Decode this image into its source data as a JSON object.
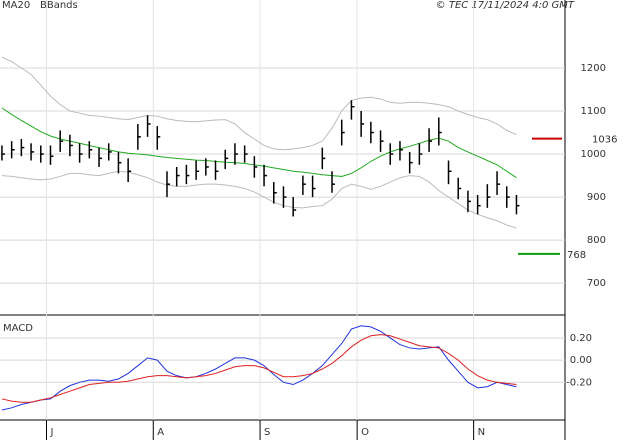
{
  "chart_data": [
    {
      "type": "ohlc",
      "source": "© TEC 17/11/2024 4:0 GMT",
      "high": [
        1020,
        1030,
        1035,
        1025,
        1020,
        1020,
        1055,
        1045,
        1025,
        1030,
        1015,
        1025,
        1005,
        990,
        1070,
        1090,
        1065,
        960,
        970,
        975,
        985,
        990,
        985,
        1010,
        1025,
        1020,
        995,
        975,
        935,
        925,
        900,
        950,
        950,
        1015,
        960,
        1080,
        1125,
        1100,
        1075,
        1055,
        1025,
        1030,
        1005,
        1025,
        1060,
        1085,
        985,
        945,
        915,
        905,
        930,
        960,
        925,
        905
      ],
      "low": [
        985,
        990,
        995,
        985,
        980,
        975,
        1005,
        995,
        980,
        990,
        970,
        985,
        955,
        935,
        1010,
        1040,
        1010,
        900,
        925,
        930,
        940,
        950,
        940,
        965,
        975,
        980,
        945,
        925,
        885,
        875,
        855,
        905,
        900,
        965,
        910,
        1020,
        1080,
        1040,
        1025,
        1005,
        975,
        985,
        955,
        975,
        1005,
        1020,
        930,
        895,
        865,
        860,
        875,
        905,
        875,
        860
      ],
      "close": [
        1000,
        1010,
        1015,
        1005,
        1000,
        995,
        1030,
        1020,
        1000,
        1010,
        990,
        1005,
        980,
        960,
        1040,
        1070,
        1040,
        930,
        950,
        950,
        960,
        970,
        960,
        990,
        1000,
        1000,
        970,
        950,
        910,
        900,
        870,
        930,
        920,
        990,
        930,
        1050,
        1110,
        1070,
        1050,
        1030,
        1000,
        1010,
        980,
        1000,
        1030,
        1050,
        960,
        920,
        890,
        880,
        900,
        930,
        900,
        880
      ],
      "bar_color": "#000000",
      "series": [
        {
          "name": "MA20",
          "color": "#22aa22",
          "values": [
            1107,
            1092,
            1078,
            1065,
            1052,
            1042,
            1035,
            1030,
            1025,
            1020,
            1015,
            1010,
            1005,
            1002,
            1000,
            998,
            995,
            992,
            990,
            988,
            986,
            985,
            983,
            981,
            980,
            978,
            975,
            972,
            968,
            964,
            960,
            958,
            955,
            952,
            950,
            948,
            955,
            968,
            983,
            995,
            1005,
            1012,
            1018,
            1025,
            1032,
            1037,
            1030,
            1015,
            1005,
            995,
            985,
            975,
            960,
            945
          ]
        },
        {
          "name": "BBands",
          "color": "#bbbbbb",
          "upper": [
            1225,
            1215,
            1200,
            1185,
            1160,
            1135,
            1115,
            1100,
            1095,
            1090,
            1088,
            1085,
            1082,
            1080,
            1085,
            1090,
            1088,
            1082,
            1078,
            1076,
            1075,
            1077,
            1079,
            1080,
            1070,
            1050,
            1035,
            1020,
            1012,
            1010,
            1012,
            1015,
            1020,
            1030,
            1060,
            1100,
            1125,
            1130,
            1132,
            1128,
            1120,
            1118,
            1120,
            1120,
            1118,
            1115,
            1110,
            1100,
            1092,
            1085,
            1080,
            1070,
            1055,
            1045
          ],
          "lower": [
            950,
            948,
            945,
            942,
            940,
            942,
            948,
            955,
            955,
            952,
            950,
            955,
            960,
            958,
            952,
            945,
            935,
            928,
            925,
            925,
            928,
            930,
            930,
            928,
            925,
            920,
            912,
            900,
            888,
            880,
            876,
            875,
            878,
            880,
            895,
            920,
            930,
            925,
            918,
            925,
            935,
            945,
            950,
            948,
            935,
            915,
            900,
            885,
            870,
            860,
            852,
            845,
            835,
            828
          ]
        }
      ],
      "annotations": [
        {
          "value": 1036,
          "color": "#cc0000"
        },
        {
          "value": 768,
          "color": "#119911"
        }
      ],
      "ylim": [
        626,
        1358
      ],
      "yticks": [
        700,
        800,
        900,
        1000,
        1100,
        1200
      ],
      "grid": true
    },
    {
      "type": "line",
      "title": "MACD",
      "categories": [
        null,
        null,
        null,
        null,
        null,
        "J",
        null,
        null,
        null,
        null,
        null,
        null,
        null,
        null,
        null,
        null,
        "A",
        null,
        null,
        null,
        null,
        null,
        null,
        null,
        null,
        null,
        null,
        "S",
        null,
        null,
        null,
        null,
        null,
        null,
        null,
        null,
        null,
        "O",
        null,
        null,
        null,
        null,
        null,
        null,
        null,
        null,
        null,
        null,
        null,
        "N",
        null,
        null,
        null,
        null
      ],
      "series": [
        {
          "color": "#2233dd",
          "values": [
            -0.45,
            -0.43,
            -0.4,
            -0.38,
            -0.36,
            -0.35,
            -0.28,
            -0.23,
            -0.2,
            -0.18,
            -0.18,
            -0.19,
            -0.17,
            -0.12,
            -0.05,
            0.02,
            0.0,
            -0.1,
            -0.14,
            -0.16,
            -0.15,
            -0.12,
            -0.08,
            -0.03,
            0.02,
            0.02,
            0.0,
            -0.05,
            -0.13,
            -0.2,
            -0.22,
            -0.18,
            -0.12,
            -0.05,
            0.05,
            0.15,
            0.28,
            0.31,
            0.3,
            0.26,
            0.2,
            0.14,
            0.11,
            0.1,
            0.11,
            0.12,
            0.0,
            -0.1,
            -0.2,
            -0.25,
            -0.24,
            -0.2,
            -0.22,
            -0.24
          ]
        },
        {
          "color": "#dd2222",
          "values": [
            -0.35,
            -0.37,
            -0.38,
            -0.38,
            -0.36,
            -0.34,
            -0.31,
            -0.28,
            -0.25,
            -0.22,
            -0.21,
            -0.2,
            -0.2,
            -0.19,
            -0.17,
            -0.15,
            -0.14,
            -0.14,
            -0.15,
            -0.16,
            -0.15,
            -0.14,
            -0.12,
            -0.09,
            -0.06,
            -0.05,
            -0.05,
            -0.07,
            -0.11,
            -0.15,
            -0.15,
            -0.14,
            -0.12,
            -0.08,
            -0.03,
            0.04,
            0.12,
            0.18,
            0.22,
            0.23,
            0.22,
            0.19,
            0.16,
            0.13,
            0.12,
            0.11,
            0.06,
            0.0,
            -0.08,
            -0.14,
            -0.18,
            -0.2,
            -0.21,
            -0.22
          ]
        }
      ],
      "ylim": [
        -0.54,
        0.38
      ],
      "yticks": [
        {
          "value": 0.2,
          "label": "0.20"
        },
        {
          "value": 0,
          "label": "0.00"
        },
        {
          "value": -0.2,
          "label": "-0.20"
        }
      ],
      "grid": true
    }
  ]
}
